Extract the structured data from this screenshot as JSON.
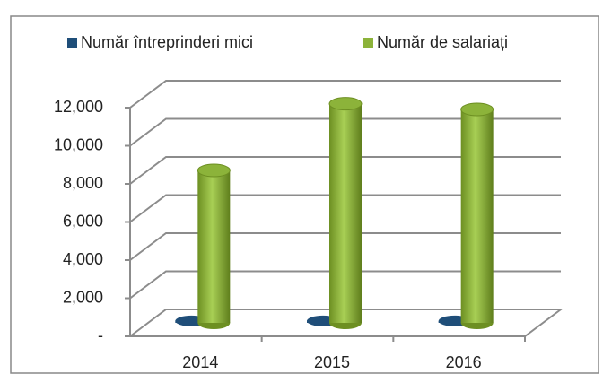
{
  "chart_data": {
    "type": "bar3d",
    "categories": [
      "2014",
      "2015",
      "2016"
    ],
    "series": [
      {
        "name": "Număr întreprinderi mici",
        "color": "#1f4e79",
        "values": [
          100,
          100,
          100
        ]
      },
      {
        "name": "Număr de salariați",
        "color": "#8cb33a",
        "values": [
          8000,
          11500,
          11200
        ]
      }
    ],
    "ylim": [
      0,
      12000
    ],
    "yticks": [
      {
        "value": 0,
        "label": "-"
      },
      {
        "value": 2000,
        "label": "2,000"
      },
      {
        "value": 4000,
        "label": "4,000"
      },
      {
        "value": 6000,
        "label": "6,000"
      },
      {
        "value": 8000,
        "label": "8,000"
      },
      {
        "value": 10000,
        "label": "10,000"
      },
      {
        "value": 12000,
        "label": "12,000"
      }
    ],
    "grid": true,
    "legend": "top"
  }
}
